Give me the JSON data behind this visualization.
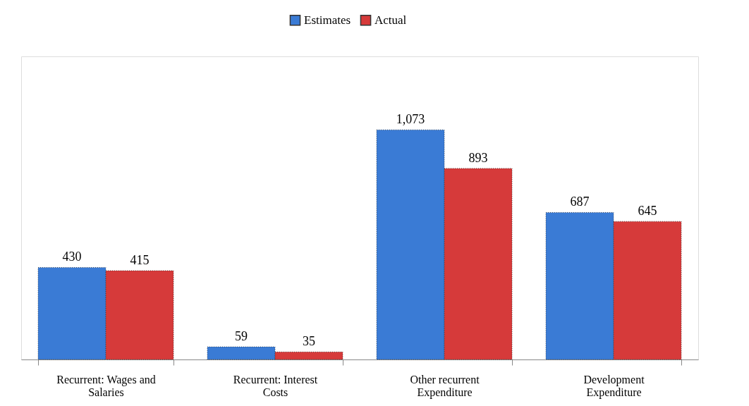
{
  "chart_data": {
    "type": "bar",
    "categories": [
      "Recurrent: Wages and Salaries",
      "Recurrent: Interest Costs",
      "Other recurrent Expenditure",
      "Development Expenditure"
    ],
    "series": [
      {
        "name": "Estimates",
        "color": "#3a7bd5",
        "values": [
          430,
          59,
          1073,
          687
        ],
        "value_labels": [
          "430",
          "59",
          "1,073",
          "687"
        ]
      },
      {
        "name": "Actual",
        "color": "#d63a3a",
        "values": [
          415,
          35,
          893,
          645
        ],
        "value_labels": [
          "415",
          "35",
          "893",
          "645"
        ]
      }
    ],
    "legend": "top",
    "grid": false
  }
}
